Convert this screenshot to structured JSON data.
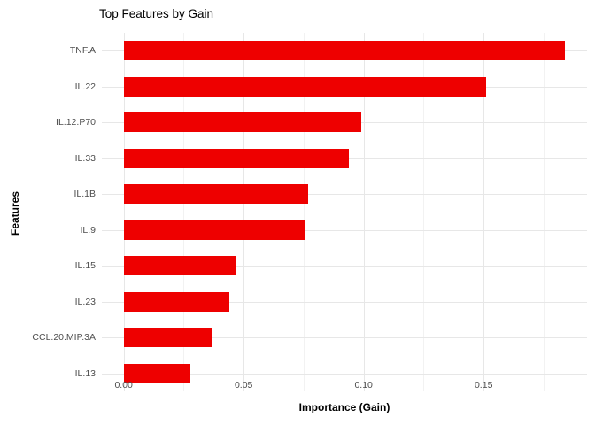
{
  "chart_data": {
    "type": "bar",
    "orientation": "horizontal",
    "title": "Top Features by Gain",
    "xlabel": "Importance (Gain)",
    "ylabel": "Features",
    "categories": [
      "TNF.A",
      "IL.22",
      "IL.12.P70",
      "IL.33",
      "IL.1B",
      "IL.9",
      "IL.15",
      "IL.23",
      "CCL.20.MIP.3A",
      "IL.13"
    ],
    "values": [
      0.184,
      0.151,
      0.099,
      0.094,
      0.077,
      0.0755,
      0.047,
      0.044,
      0.0366,
      0.0278
    ],
    "x_tick_values": [
      0,
      0.05,
      0.1,
      0.15
    ],
    "x_tick_labels": [
      "0.00",
      "0.05",
      "0.10",
      "0.15"
    ],
    "x_minor_tick_values": [
      0.025,
      0.075,
      0.125,
      0.175
    ],
    "xlim": [
      -0.0091,
      0.1931
    ],
    "grid": true,
    "legend": false,
    "bar_color": "#ee0000",
    "background_color": "#ffffff",
    "tick_label_color": "#4d4d4d",
    "grid_major_color": "#e7e7e7",
    "grid_minor_color": "#f2f2f2"
  }
}
